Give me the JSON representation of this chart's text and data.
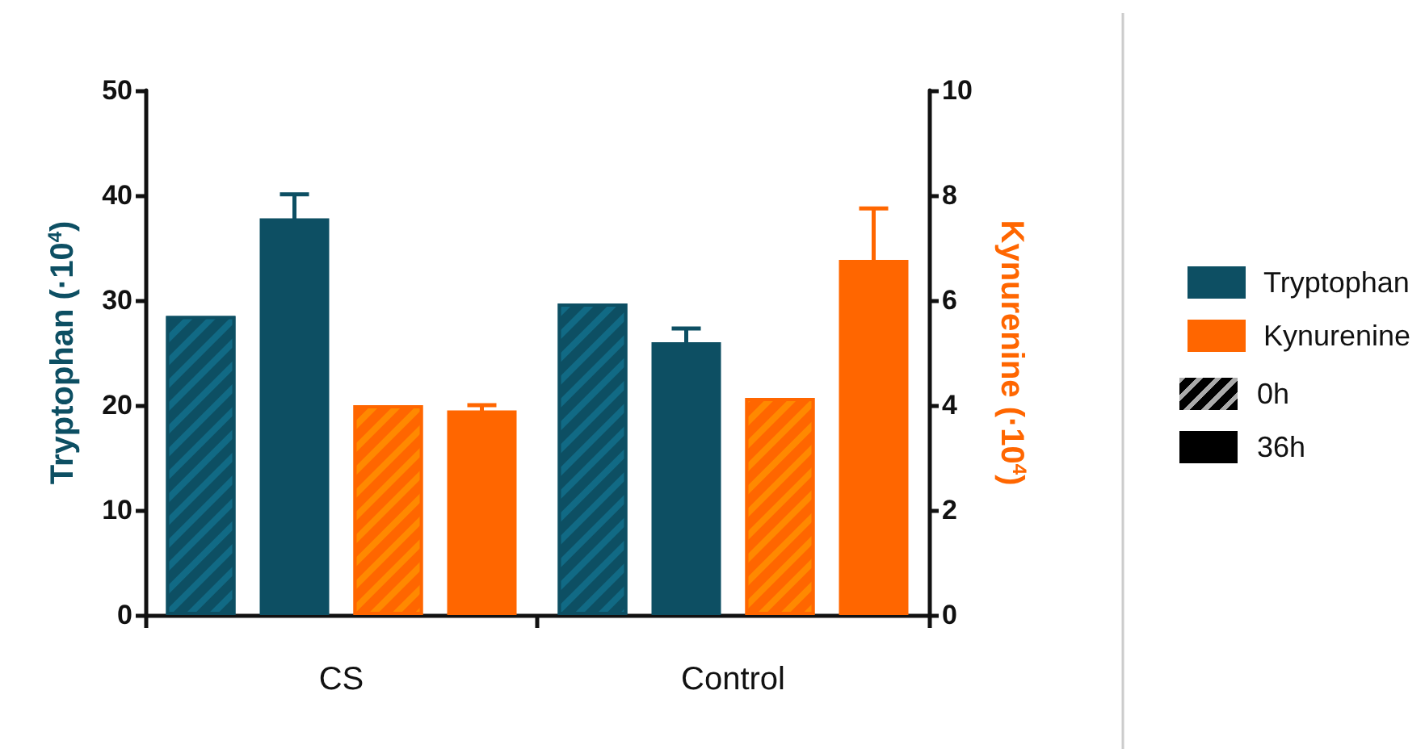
{
  "chart_data": {
    "type": "bar",
    "ylabel": "Tryptophan (·10$^{4}$)",
    "y2label": "Kynurenine (·10$^{4}$)",
    "categories": [
      "CS",
      "Control"
    ],
    "series": [
      {
        "color": "#0d4f63",
        "values": [
          28.5,
          29.7
        ]
      },
      {
        "name": "Tryptophan",
        "color": "#0d4f63",
        "values": [
          37.8,
          26.0
        ],
        "errors": [
          2.3,
          1.3
        ]
      },
      {
        "color": "#ff6600",
        "axis": "y2",
        "values": [
          4.0,
          4.14
        ]
      },
      {
        "name": "Kynurenine",
        "color": "#ff6600",
        "axis": "y2",
        "values": [
          3.9,
          6.77
        ],
        "errors": [
          0.1,
          0.98
        ]
      }
    ],
    "ylim": [
      0,
      50
    ],
    "yticks": [
      0,
      10,
      20,
      30,
      40,
      50
    ],
    "y2lim": [
      0,
      10
    ],
    "y2ticks": [
      0,
      2,
      4,
      6,
      8,
      10
    ],
    "annotations": [
      "0h",
      "36h"
    ],
    "legend": "right",
    "grid": false
  }
}
